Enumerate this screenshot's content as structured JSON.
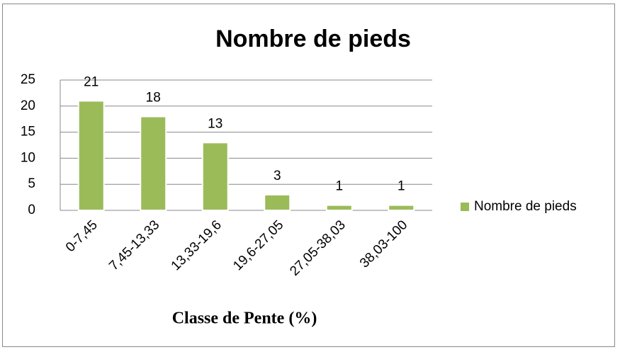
{
  "chart_data": {
    "type": "bar",
    "title": "Nombre de pieds",
    "x_label": "Classe de Pente (%)",
    "categories": [
      "0-7,45",
      "7,45-13,33",
      "13,33-19,6",
      "19,6-27,05",
      "27,05-38,03",
      "38,03-100"
    ],
    "series": [
      {
        "name": "Nombre de pieds",
        "color": "#9bbb59",
        "values": [
          21,
          18,
          13,
          3,
          1,
          1
        ]
      }
    ],
    "ylim": [
      0,
      25
    ],
    "yticks": [
      0,
      5,
      10,
      15,
      20,
      25
    ],
    "grid": true,
    "legend": "right"
  }
}
